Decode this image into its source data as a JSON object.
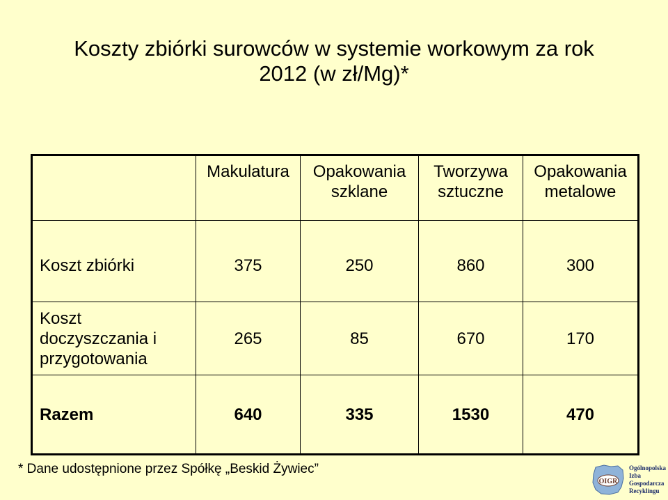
{
  "title": {
    "line1": "Koszty zbiórki surowców w systemie workowym za rok",
    "line2": "2012 (w zł/Mg)*"
  },
  "table": {
    "headers": [
      "",
      "Makulatura",
      "Opakowania szklane",
      "Tworzywa sztuczne",
      "Opakowania metalowe"
    ],
    "rows": [
      {
        "label": "Koszt zbiórki",
        "values": [
          "375",
          "250",
          "860",
          "300"
        ]
      },
      {
        "label": "Koszt doczyszczania i przygotowania",
        "values": [
          "265",
          "85",
          "670",
          "170"
        ]
      },
      {
        "label": "Razem",
        "values": [
          "640",
          "335",
          "1530",
          "470"
        ]
      }
    ]
  },
  "footnote": "* Dane udostępnione przez Spółkę „Beskid Żywiec”",
  "logo": {
    "icon": "poland-map-logo",
    "badge": "OIGR",
    "lines": [
      "Ogólnopolska",
      "Izba",
      "Gospodarcza",
      "Recyklingu"
    ],
    "colors": {
      "map": "#8fb3d9",
      "text": "#1a2a6a"
    }
  }
}
